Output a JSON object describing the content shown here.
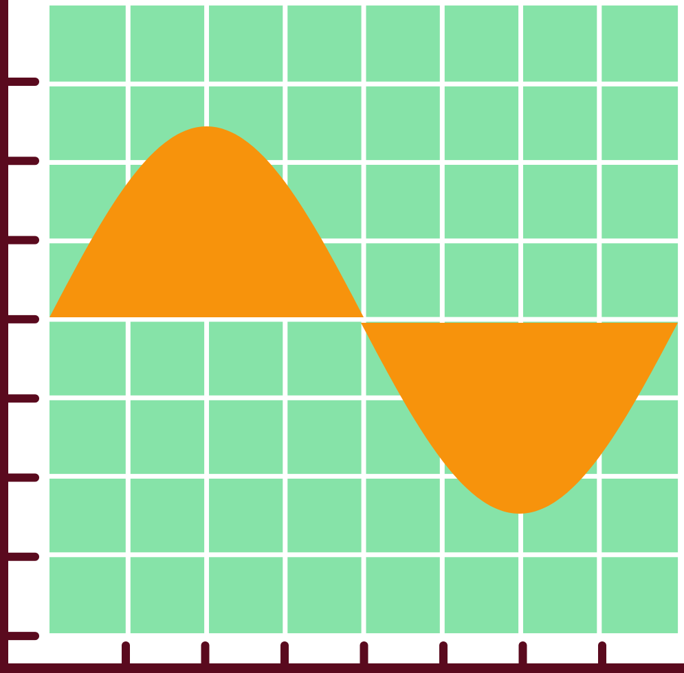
{
  "figure": {
    "icon": "sine-wave-graph-icon",
    "colors": {
      "background": "#ffffff",
      "grid_fill": "#86e3a8",
      "grid_line": "#ffffff",
      "wave_fill": "#f7930c",
      "axis": "#5a0a1e"
    },
    "grid": {
      "columns": 8,
      "rows": 8
    },
    "wave": {
      "shape": "sine",
      "cycles": 1
    },
    "axes": {
      "y_ticks": 8,
      "x_ticks": 7
    }
  }
}
